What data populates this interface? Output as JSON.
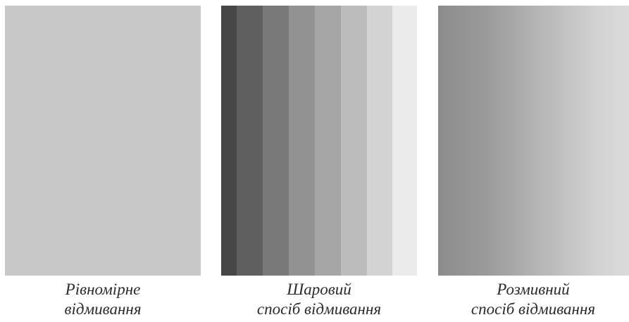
{
  "panels": {
    "uniform": {
      "fill": "#c8c8c8",
      "caption_line1": "Рівномірне",
      "caption_line2": "відмивання"
    },
    "layered": {
      "bands": [
        {
          "width": 22,
          "color": "#474747"
        },
        {
          "width": 37,
          "color": "#5f5f5f"
        },
        {
          "width": 37,
          "color": "#797979"
        },
        {
          "width": 37,
          "color": "#929292"
        },
        {
          "width": 37,
          "color": "#a6a6a6"
        },
        {
          "width": 37,
          "color": "#bcbcbc"
        },
        {
          "width": 36,
          "color": "#d3d3d3"
        },
        {
          "width": 35,
          "color": "#ebebeb"
        }
      ],
      "caption_line1": "Шаровий",
      "caption_line2": "спосіб відмивання"
    },
    "blended": {
      "gradient_from": "#8c8c8c",
      "gradient_to": "#dadada",
      "caption_line1": "Розмивний",
      "caption_line2": "спосіб відмивання"
    }
  }
}
